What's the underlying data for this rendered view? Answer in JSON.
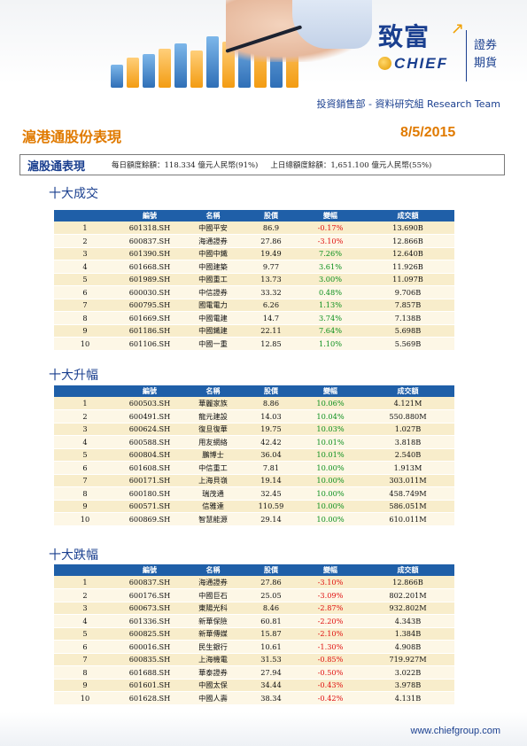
{
  "header": {
    "logo_cn": "致富",
    "logo_en": "CHIEF",
    "logo_side_line1": "證券",
    "logo_side_line2": "期貨",
    "department": "投資銷售部 - 資料研究組 Research Team"
  },
  "title": "滬港通股份表現",
  "date": "8/5/2015",
  "quota": {
    "title": "滬股通表現",
    "daily": "每日額度餘額：118.334 億元人民幣(91%)",
    "total": "上日總額度餘額：1,651.100 億元人民幣(55%)"
  },
  "columns": [
    "編號",
    "名稱",
    "股價",
    "變幅",
    "成交額"
  ],
  "sections": [
    {
      "title": "十大成交",
      "rows": [
        {
          "rank": "1",
          "code": "601318.SH",
          "name": "中國平安",
          "price": "86.9",
          "change": "-0.17%",
          "volume": "13.690B"
        },
        {
          "rank": "2",
          "code": "600837.SH",
          "name": "海通證券",
          "price": "27.86",
          "change": "-3.10%",
          "volume": "12.866B"
        },
        {
          "rank": "3",
          "code": "601390.SH",
          "name": "中國中鐵",
          "price": "19.49",
          "change": "7.26%",
          "volume": "12.640B"
        },
        {
          "rank": "4",
          "code": "601668.SH",
          "name": "中國建築",
          "price": "9.77",
          "change": "3.61%",
          "volume": "11.926B"
        },
        {
          "rank": "5",
          "code": "601989.SH",
          "name": "中國重工",
          "price": "13.73",
          "change": "3.00%",
          "volume": "11.097B"
        },
        {
          "rank": "6",
          "code": "600030.SH",
          "name": "中信證券",
          "price": "33.32",
          "change": "0.48%",
          "volume": "9.706B"
        },
        {
          "rank": "7",
          "code": "600795.SH",
          "name": "國電電力",
          "price": "6.26",
          "change": "1.13%",
          "volume": "7.857B"
        },
        {
          "rank": "8",
          "code": "601669.SH",
          "name": "中國電建",
          "price": "14.7",
          "change": "3.74%",
          "volume": "7.138B"
        },
        {
          "rank": "9",
          "code": "601186.SH",
          "name": "中國鐵建",
          "price": "22.11",
          "change": "7.64%",
          "volume": "5.698B"
        },
        {
          "rank": "10",
          "code": "601106.SH",
          "name": "中國一重",
          "price": "12.85",
          "change": "1.10%",
          "volume": "5.569B"
        }
      ]
    },
    {
      "title": "十大升幅",
      "rows": [
        {
          "rank": "1",
          "code": "600503.SH",
          "name": "華麗家族",
          "price": "8.86",
          "change": "10.06%",
          "volume": "4.121M"
        },
        {
          "rank": "2",
          "code": "600491.SH",
          "name": "龍元建設",
          "price": "14.03",
          "change": "10.04%",
          "volume": "550.880M"
        },
        {
          "rank": "3",
          "code": "600624.SH",
          "name": "復旦復華",
          "price": "19.75",
          "change": "10.03%",
          "volume": "1.027B"
        },
        {
          "rank": "4",
          "code": "600588.SH",
          "name": "用友網絡",
          "price": "42.42",
          "change": "10.01%",
          "volume": "3.818B"
        },
        {
          "rank": "5",
          "code": "600804.SH",
          "name": "鵬博士",
          "price": "36.04",
          "change": "10.01%",
          "volume": "2.540B"
        },
        {
          "rank": "6",
          "code": "601608.SH",
          "name": "中信重工",
          "price": "7.81",
          "change": "10.00%",
          "volume": "1.913M"
        },
        {
          "rank": "7",
          "code": "600171.SH",
          "name": "上海貝嶺",
          "price": "19.14",
          "change": "10.00%",
          "volume": "303.011M"
        },
        {
          "rank": "8",
          "code": "600180.SH",
          "name": "瑞茂通",
          "price": "32.45",
          "change": "10.00%",
          "volume": "458.749M"
        },
        {
          "rank": "9",
          "code": "600571.SH",
          "name": "信雅達",
          "price": "110.59",
          "change": "10.00%",
          "volume": "586.051M"
        },
        {
          "rank": "10",
          "code": "600869.SH",
          "name": "智慧能源",
          "price": "29.14",
          "change": "10.00%",
          "volume": "610.011M"
        }
      ]
    },
    {
      "title": "十大跌幅",
      "rows": [
        {
          "rank": "1",
          "code": "600837.SH",
          "name": "海通證券",
          "price": "27.86",
          "change": "-3.10%",
          "volume": "12.866B"
        },
        {
          "rank": "2",
          "code": "600176.SH",
          "name": "中國巨石",
          "price": "25.05",
          "change": "-3.09%",
          "volume": "802.201M"
        },
        {
          "rank": "3",
          "code": "600673.SH",
          "name": "東陽光科",
          "price": "8.46",
          "change": "-2.87%",
          "volume": "932.802M"
        },
        {
          "rank": "4",
          "code": "601336.SH",
          "name": "新華保險",
          "price": "60.81",
          "change": "-2.20%",
          "volume": "4.343B"
        },
        {
          "rank": "5",
          "code": "600825.SH",
          "name": "新華傳媒",
          "price": "15.87",
          "change": "-2.10%",
          "volume": "1.384B"
        },
        {
          "rank": "6",
          "code": "600016.SH",
          "name": "民生銀行",
          "price": "10.61",
          "change": "-1.30%",
          "volume": "4.908B"
        },
        {
          "rank": "7",
          "code": "600835.SH",
          "name": "上海機電",
          "price": "31.53",
          "change": "-0.85%",
          "volume": "719.927M"
        },
        {
          "rank": "8",
          "code": "601688.SH",
          "name": "華泰證券",
          "price": "27.94",
          "change": "-0.50%",
          "volume": "3.022B"
        },
        {
          "rank": "9",
          "code": "601601.SH",
          "name": "中國太保",
          "price": "34.44",
          "change": "-0.43%",
          "volume": "3.978B"
        },
        {
          "rank": "10",
          "code": "601628.SH",
          "name": "中國人壽",
          "price": "38.34",
          "change": "-0.42%",
          "volume": "4.131B"
        }
      ]
    }
  ],
  "footer": "www.chiefgroup.com",
  "colors": {
    "brand_blue": "#1a3f8f",
    "header_blue": "#1f5fa8",
    "title_orange": "#e07a00",
    "up_green": "#0a8f1c",
    "down_red": "#e01010"
  }
}
